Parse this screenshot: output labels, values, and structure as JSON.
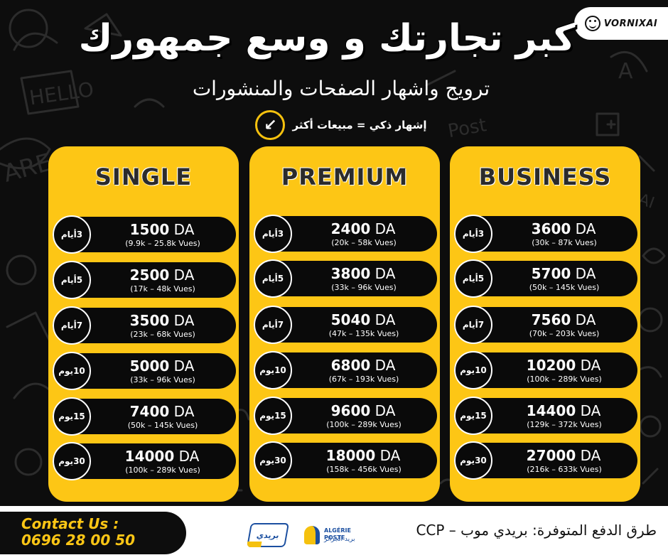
{
  "brand": {
    "name": "VORNIXAI",
    "icon": "smiley-icon"
  },
  "header": {
    "title": "كبر تجارتك و وسع جمهورك",
    "subtitle": "ترويج واشهار الصفحات والمنشورات",
    "tagline": "إشهار ذكي = مبيعات أكثر",
    "tagline_icon": "arrow-down-left-icon"
  },
  "colors": {
    "accent": "#fdc615",
    "background": "#0d0d0d",
    "row": "#0a0a0a"
  },
  "plans": [
    {
      "name": "SINGLE",
      "rows": [
        {
          "duration": "3أيام",
          "price": "1500",
          "currency": " DA",
          "views": "(9.9k – 25.8k Vues)"
        },
        {
          "duration": "5أيام",
          "price": "2500",
          "currency": " DA",
          "views": "(17k – 48k Vues)"
        },
        {
          "duration": "7أيام",
          "price": "3500",
          "currency": " DA",
          "views": "(23k – 68k Vues)"
        },
        {
          "duration": "10يوم",
          "price": "5000",
          "currency": " DA",
          "views": "(33k – 96k Vues)"
        },
        {
          "duration": "15يوم",
          "price": "7400",
          "currency": " DA",
          "views": "(50k – 145k Vues)"
        },
        {
          "duration": "30يوم",
          "price": "14000",
          "currency": " DA",
          "views": "(100k – 289k Vues)"
        }
      ]
    },
    {
      "name": "PREMIUM",
      "rows": [
        {
          "duration": "3أيام",
          "price": "2400",
          "currency": " DA",
          "views": "(20k – 58k Vues)"
        },
        {
          "duration": "5أيام",
          "price": "3800",
          "currency": " DA",
          "views": "(33k – 96k Vues)"
        },
        {
          "duration": "7أيام",
          "price": "5040",
          "currency": " DA",
          "views": "(47k – 135k Vues)"
        },
        {
          "duration": "10يوم",
          "price": "6800",
          "currency": " DA",
          "views": "(67k – 193k Vues)"
        },
        {
          "duration": "15يوم",
          "price": "9600",
          "currency": " DA",
          "views": "(100k – 289k Vues)"
        },
        {
          "duration": "30يوم",
          "price": "18000",
          "currency": " DA",
          "views": "(158k – 456k Vues)"
        }
      ]
    },
    {
      "name": "BUSINESS",
      "rows": [
        {
          "duration": "3أيام",
          "price": "3600",
          "currency": " DA",
          "views": "(30k – 87k Vues)"
        },
        {
          "duration": "5أيام",
          "price": "5700",
          "currency": " DA",
          "views": "(50k – 145k Vues)"
        },
        {
          "duration": "7أيام",
          "price": "7560",
          "currency": " DA",
          "views": "(70k – 203k Vues)"
        },
        {
          "duration": "10يوم",
          "price": "10200",
          "currency": " DA",
          "views": "(100k – 289k Vues)"
        },
        {
          "duration": "15يوم",
          "price": "14400",
          "currency": " DA",
          "views": "(129k – 372k Vues)"
        },
        {
          "duration": "30يوم",
          "price": "27000",
          "currency": " DA",
          "views": "(216k – 633k Vues)"
        }
      ]
    }
  ],
  "footer": {
    "contact_label": "Contact Us :",
    "phone": "0696 28 00 50",
    "payment_methods": "طرق الدفع المتوفرة: بريدي موب – CCP",
    "logo_baridi": "بريدي",
    "logo_poste": "ALGÉRIE POSTE",
    "logo_poste_ar": "بريد الجزائر"
  }
}
